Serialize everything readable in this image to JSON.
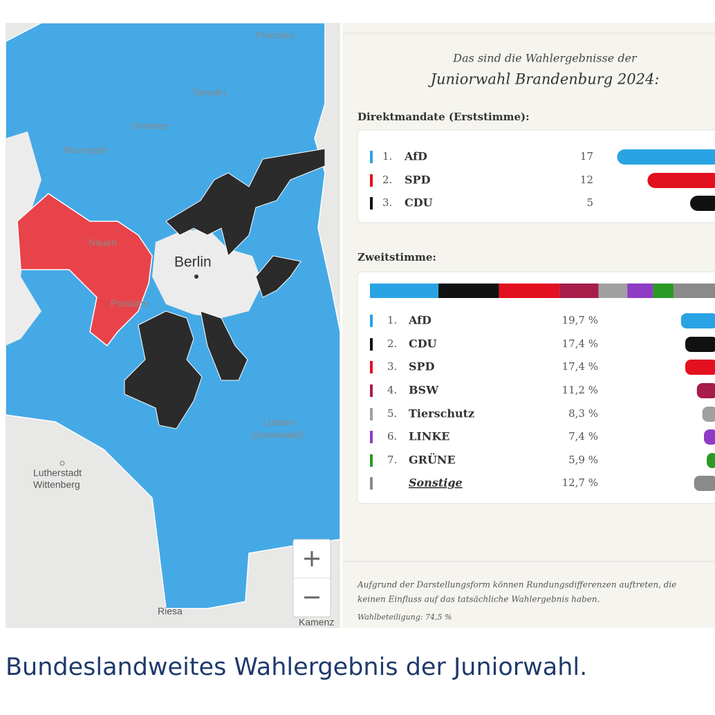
{
  "map": {
    "labels": [
      "Prenzlau",
      "Templin",
      "Gransee",
      "Neuruppin",
      "Berlin",
      "Nauen",
      "Potsdam",
      "Lübben",
      "(Spreewald)",
      "Lutherstadt",
      "Wittenberg",
      "Riesa",
      "Kamenz"
    ]
  },
  "panel": {
    "intro": "Das sind die Wahlergebnisse der",
    "title": "Juniorwahl Brandenburg 2024:",
    "direct": {
      "heading": "Direktmandate (Erststimme):",
      "rows": [
        {
          "rank": "1.",
          "party": "AfD",
          "value": 17,
          "color": "#2aa3e4"
        },
        {
          "rank": "2.",
          "party": "SPD",
          "value": 12,
          "color": "#e3101f"
        },
        {
          "rank": "3.",
          "party": "CDU",
          "value": 5,
          "color": "#111111"
        }
      ]
    },
    "second": {
      "heading": "Zweitstimme:",
      "rows": [
        {
          "rank": "1.",
          "party": "AfD",
          "value": 19.7,
          "value_label": "19,7 %",
          "color": "#2aa3e4"
        },
        {
          "rank": "2.",
          "party": "CDU",
          "value": 17.4,
          "value_label": "17,4 %",
          "color": "#111111"
        },
        {
          "rank": "3.",
          "party": "SPD",
          "value": 17.4,
          "value_label": "17,4 %",
          "color": "#e3101f"
        },
        {
          "rank": "4.",
          "party": "BSW",
          "value": 11.2,
          "value_label": "11,2 %",
          "color": "#a81c4a"
        },
        {
          "rank": "5.",
          "party": "Tierschutz",
          "value": 8.3,
          "value_label": "8,3 %",
          "color": "#a0a0a0"
        },
        {
          "rank": "6.",
          "party": "LINKE",
          "value": 7.4,
          "value_label": "7,4 %",
          "color": "#8e3bc6"
        },
        {
          "rank": "7.",
          "party": "GRÜNE",
          "value": 5.9,
          "value_label": "5,9 %",
          "color": "#2a9a24"
        },
        {
          "party": "Sonstige",
          "value": 12.7,
          "value_label": "12,7 %",
          "color": "#8a8a8a"
        }
      ]
    },
    "footnote": [
      "Aufgrund der Darstellungsform können Rundungsdifferenzen auftreten, die",
      "keinen Einfluss auf das tatsächliche Wahlergebnis haben."
    ],
    "turnout": "Wahlbeteiligung: 74,5 %"
  },
  "caption": "Bundeslandweites Wahlergebnis der Juniorwahl."
}
